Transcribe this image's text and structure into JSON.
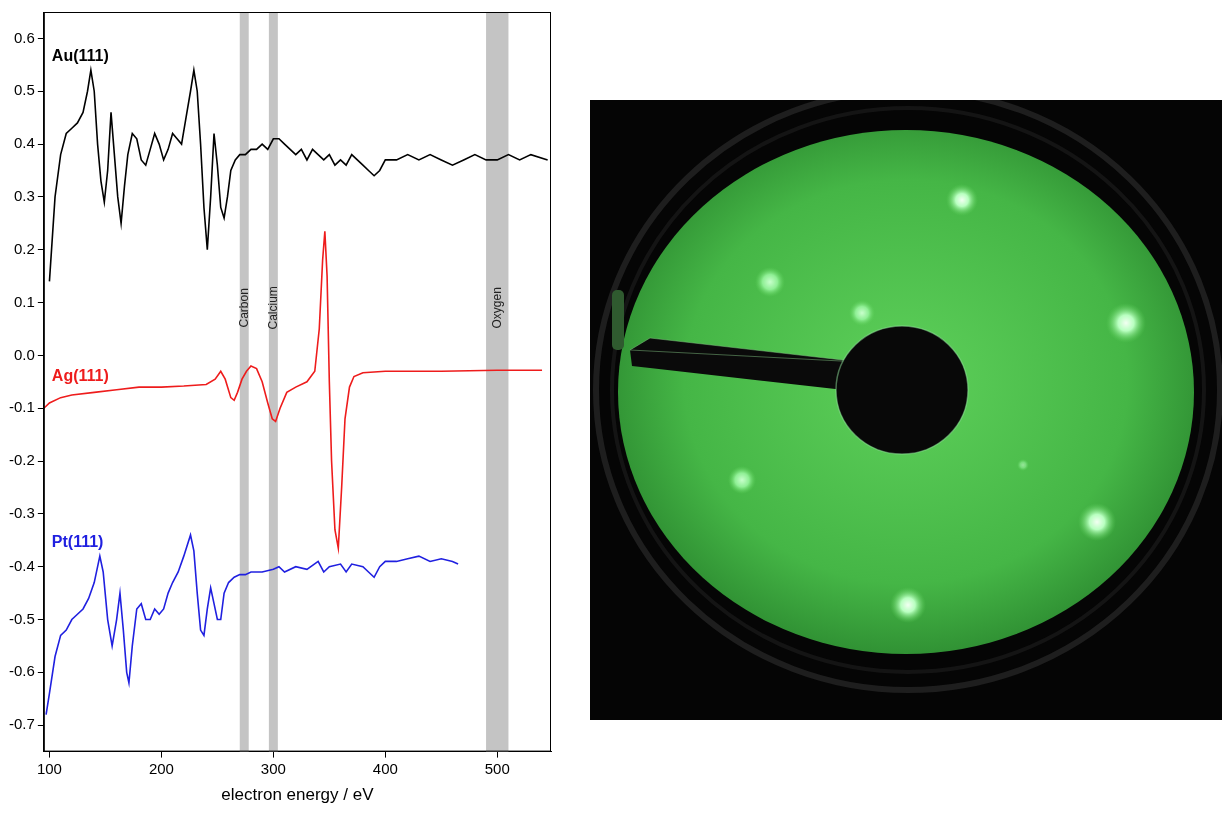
{
  "chart_data": {
    "type": "line",
    "x_label": "electron energy / eV",
    "xlim": [
      95,
      548
    ],
    "xticks": [
      100,
      200,
      300,
      400,
      500
    ],
    "ylim": [
      -0.75,
      0.65
    ],
    "yticks": [
      -0.7,
      -0.6,
      -0.5,
      -0.4,
      -0.3,
      -0.2,
      -0.1,
      {
        "value": 0,
        "label": "0.0"
      },
      0.1,
      0.2,
      0.3,
      0.4,
      0.5,
      0.6
    ],
    "grid": false,
    "bands": [
      {
        "label": "Carbon",
        "from": 270,
        "to": 278
      },
      {
        "label": "Calcium",
        "from": 296,
        "to": 304
      },
      {
        "label": "Oxygen",
        "from": 490,
        "to": 510
      }
    ],
    "series": [
      {
        "name": "Au(111)",
        "color": "#000000",
        "x": [
          100,
          105,
          110,
          115,
          120,
          125,
          130,
          134,
          137,
          140,
          143,
          146,
          149,
          152,
          155,
          158,
          161,
          164,
          167,
          170,
          174,
          178,
          182,
          186,
          190,
          194,
          198,
          202,
          206,
          210,
          214,
          218,
          222,
          226,
          229,
          232,
          235,
          238,
          241,
          244,
          247,
          250,
          253,
          256,
          259,
          262,
          266,
          270,
          275,
          280,
          285,
          290,
          295,
          300,
          305,
          310,
          315,
          320,
          325,
          330,
          335,
          340,
          345,
          350,
          355,
          360,
          365,
          370,
          375,
          380,
          385,
          390,
          395,
          400,
          410,
          420,
          430,
          440,
          450,
          460,
          470,
          480,
          490,
          500,
          510,
          520,
          530,
          545
        ],
        "values": [
          0.14,
          0.3,
          0.38,
          0.42,
          0.43,
          0.44,
          0.46,
          0.5,
          0.54,
          0.5,
          0.4,
          0.33,
          0.29,
          0.35,
          0.46,
          0.38,
          0.3,
          0.25,
          0.32,
          0.38,
          0.42,
          0.41,
          0.37,
          0.36,
          0.39,
          0.42,
          0.4,
          0.37,
          0.39,
          0.42,
          0.41,
          0.4,
          0.45,
          0.5,
          0.54,
          0.5,
          0.4,
          0.28,
          0.2,
          0.3,
          0.42,
          0.36,
          0.28,
          0.26,
          0.3,
          0.35,
          0.37,
          0.38,
          0.38,
          0.39,
          0.39,
          0.4,
          0.39,
          0.41,
          0.41,
          0.4,
          0.39,
          0.38,
          0.39,
          0.37,
          0.39,
          0.38,
          0.37,
          0.38,
          0.36,
          0.37,
          0.36,
          0.38,
          0.37,
          0.36,
          0.35,
          0.34,
          0.35,
          0.37,
          0.37,
          0.38,
          0.37,
          0.38,
          0.37,
          0.36,
          0.37,
          0.38,
          0.37,
          0.37,
          0.38,
          0.37,
          0.38,
          0.37
        ]
      },
      {
        "name": "Ag(111)",
        "color": "#ee1c1c",
        "x": [
          95,
          100,
          110,
          120,
          140,
          160,
          180,
          200,
          220,
          240,
          248,
          253,
          257,
          262,
          265,
          268,
          272,
          276,
          280,
          285,
          290,
          295,
          299,
          302,
          306,
          312,
          320,
          330,
          337,
          341,
          344,
          346,
          348,
          350,
          352,
          355,
          358,
          361,
          364,
          368,
          372,
          380,
          400,
          450,
          500,
          540
        ],
        "values": [
          -0.1,
          -0.09,
          -0.08,
          -0.075,
          -0.07,
          -0.065,
          -0.06,
          -0.06,
          -0.058,
          -0.055,
          -0.045,
          -0.03,
          -0.045,
          -0.08,
          -0.085,
          -0.07,
          -0.045,
          -0.03,
          -0.02,
          -0.025,
          -0.05,
          -0.09,
          -0.12,
          -0.125,
          -0.1,
          -0.07,
          -0.06,
          -0.05,
          -0.03,
          0.05,
          0.18,
          0.235,
          0.15,
          -0.05,
          -0.2,
          -0.33,
          -0.365,
          -0.25,
          -0.12,
          -0.06,
          -0.04,
          -0.033,
          -0.03,
          -0.03,
          -0.028,
          -0.028
        ]
      },
      {
        "name": "Pt(111)",
        "color": "#2020e0",
        "x": [
          97,
          100,
          105,
          110,
          115,
          120,
          125,
          130,
          135,
          140,
          145,
          148,
          152,
          156,
          160,
          163,
          166,
          169,
          171,
          174,
          178,
          182,
          186,
          190,
          194,
          198,
          202,
          206,
          210,
          215,
          220,
          226,
          229,
          232,
          235,
          238,
          241,
          244,
          247,
          250,
          253,
          256,
          260,
          265,
          270,
          275,
          280,
          290,
          300,
          305,
          310,
          320,
          330,
          340,
          345,
          350,
          360,
          365,
          370,
          380,
          385,
          390,
          395,
          400,
          410,
          420,
          430,
          440,
          450,
          460,
          465
        ],
        "values": [
          -0.68,
          -0.64,
          -0.57,
          -0.53,
          -0.52,
          -0.5,
          -0.49,
          -0.48,
          -0.46,
          -0.43,
          -0.38,
          -0.41,
          -0.5,
          -0.55,
          -0.5,
          -0.45,
          -0.52,
          -0.6,
          -0.62,
          -0.55,
          -0.48,
          -0.47,
          -0.5,
          -0.5,
          -0.48,
          -0.49,
          -0.48,
          -0.45,
          -0.43,
          -0.41,
          -0.38,
          -0.34,
          -0.37,
          -0.45,
          -0.52,
          -0.53,
          -0.48,
          -0.44,
          -0.47,
          -0.5,
          -0.5,
          -0.45,
          -0.43,
          -0.42,
          -0.415,
          -0.415,
          -0.41,
          -0.41,
          -0.405,
          -0.4,
          -0.41,
          -0.4,
          -0.405,
          -0.39,
          -0.41,
          -0.4,
          -0.395,
          -0.41,
          -0.395,
          -0.4,
          -0.41,
          -0.42,
          -0.4,
          -0.39,
          -0.39,
          -0.385,
          -0.38,
          -0.39,
          -0.385,
          -0.39,
          -0.395
        ]
      }
    ]
  }
}
